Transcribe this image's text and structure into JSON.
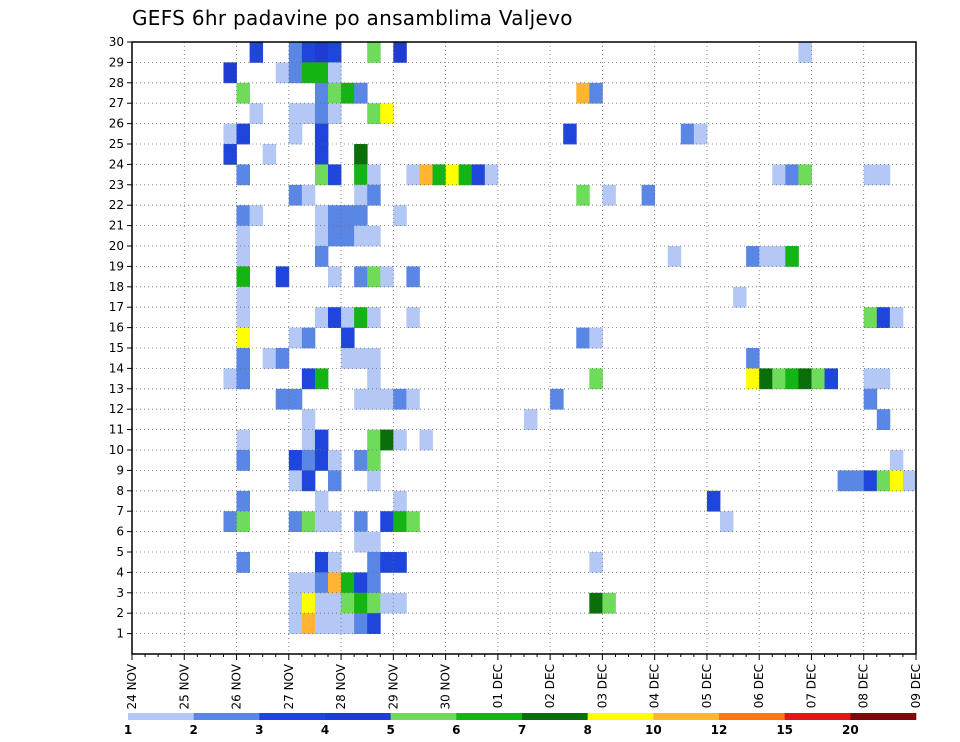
{
  "title": "GEFS 6hr padavine po ansamblima Valjevo",
  "chart_data": {
    "type": "heatmap",
    "title": "GEFS 6hr padavine po ansamblima Valjevo",
    "x_axis": {
      "labels": [
        "24 NOV",
        "25 NOV",
        "26 NOV",
        "27 NOV",
        "28 NOV",
        "29 NOV",
        "30 NOV",
        "01 DEC",
        "02 DEC",
        "03 DEC",
        "04 DEC",
        "05 DEC",
        "06 DEC",
        "07 DEC",
        "08 DEC",
        "09 DEC"
      ],
      "steps_per_day": 4,
      "total_steps": 60
    },
    "y_axis": {
      "labels": [
        "1",
        "2",
        "3",
        "4",
        "5",
        "6",
        "7",
        "8",
        "9",
        "10",
        "11",
        "12",
        "13",
        "14",
        "15",
        "16",
        "17",
        "18",
        "19",
        "20",
        "21",
        "22",
        "23",
        "24",
        "25",
        "26",
        "27",
        "28",
        "29",
        "30"
      ],
      "min": 0,
      "max": 30
    },
    "colorbar": {
      "labels": [
        "1",
        "2",
        "3",
        "4",
        "5",
        "6",
        "7",
        "8",
        "10",
        "12",
        "15",
        "20"
      ],
      "colors": [
        "#b4c8f5",
        "#5a87e6",
        "#1e46dc",
        "#1e3cd2",
        "#6edc5a",
        "#14b414",
        "#0a6e0a",
        "#ffff00",
        "#ffb432",
        "#ff7814",
        "#e61414",
        "#7d0a0a"
      ]
    },
    "cells": [
      {
        "m": 30,
        "t": [
          [
            9,
            2
          ],
          [
            12,
            1
          ],
          [
            13,
            2
          ],
          [
            14,
            3
          ],
          [
            15,
            2
          ],
          [
            18,
            4
          ],
          [
            20,
            3
          ],
          [
            51,
            0
          ]
        ]
      },
      {
        "m": 29,
        "t": [
          [
            7,
            3
          ],
          [
            11,
            0
          ],
          [
            12,
            1
          ],
          [
            13,
            5
          ],
          [
            14,
            5
          ],
          [
            15,
            0
          ]
        ]
      },
      {
        "m": 28,
        "t": [
          [
            8,
            4
          ],
          [
            14,
            1
          ],
          [
            15,
            4
          ],
          [
            16,
            5
          ],
          [
            17,
            1
          ],
          [
            34,
            8
          ],
          [
            35,
            1
          ]
        ]
      },
      {
        "m": 27,
        "t": [
          [
            9,
            0
          ],
          [
            12,
            0
          ],
          [
            13,
            0
          ],
          [
            14,
            1
          ],
          [
            15,
            0
          ],
          [
            18,
            4
          ],
          [
            19,
            7
          ]
        ]
      },
      {
        "m": 26,
        "t": [
          [
            7,
            0
          ],
          [
            8,
            2
          ],
          [
            12,
            0
          ],
          [
            14,
            2
          ],
          [
            33,
            2
          ],
          [
            42,
            1
          ],
          [
            43,
            0
          ]
        ]
      },
      {
        "m": 25,
        "t": [
          [
            7,
            2
          ],
          [
            10,
            0
          ],
          [
            14,
            2
          ],
          [
            17,
            6
          ]
        ]
      },
      {
        "m": 24,
        "t": [
          [
            8,
            1
          ],
          [
            14,
            4
          ],
          [
            15,
            2
          ],
          [
            17,
            5
          ],
          [
            18,
            0
          ],
          [
            21,
            0
          ],
          [
            22,
            8
          ],
          [
            23,
            5
          ],
          [
            24,
            7
          ],
          [
            25,
            5
          ],
          [
            26,
            2
          ],
          [
            27,
            0
          ],
          [
            49,
            0
          ],
          [
            50,
            1
          ],
          [
            51,
            4
          ],
          [
            56,
            0
          ],
          [
            57,
            0
          ]
        ]
      },
      {
        "m": 23,
        "t": [
          [
            12,
            1
          ],
          [
            13,
            0
          ],
          [
            17,
            0
          ],
          [
            18,
            1
          ],
          [
            34,
            4
          ],
          [
            36,
            0
          ],
          [
            39,
            1
          ]
        ]
      },
      {
        "m": 22,
        "t": [
          [
            8,
            1
          ],
          [
            9,
            0
          ],
          [
            14,
            0
          ],
          [
            15,
            1
          ],
          [
            16,
            1
          ],
          [
            17,
            1
          ],
          [
            20,
            0
          ]
        ]
      },
      {
        "m": 21,
        "t": [
          [
            8,
            0
          ],
          [
            14,
            0
          ],
          [
            15,
            1
          ],
          [
            16,
            1
          ],
          [
            17,
            0
          ],
          [
            18,
            0
          ]
        ]
      },
      {
        "m": 20,
        "t": [
          [
            8,
            0
          ],
          [
            14,
            1
          ],
          [
            41,
            0
          ],
          [
            47,
            1
          ],
          [
            48,
            0
          ],
          [
            49,
            0
          ],
          [
            50,
            5
          ]
        ]
      },
      {
        "m": 19,
        "t": [
          [
            8,
            5
          ],
          [
            11,
            2
          ],
          [
            15,
            0
          ],
          [
            17,
            1
          ],
          [
            18,
            4
          ],
          [
            19,
            0
          ],
          [
            21,
            1
          ]
        ]
      },
      {
        "m": 18,
        "t": [
          [
            8,
            0
          ],
          [
            46,
            0
          ]
        ]
      },
      {
        "m": 17,
        "t": [
          [
            8,
            0
          ],
          [
            14,
            0
          ],
          [
            15,
            2
          ],
          [
            16,
            0
          ],
          [
            17,
            5
          ],
          [
            18,
            0
          ],
          [
            21,
            0
          ],
          [
            56,
            4
          ],
          [
            57,
            2
          ],
          [
            58,
            0
          ]
        ]
      },
      {
        "m": 16,
        "t": [
          [
            8,
            7
          ],
          [
            12,
            0
          ],
          [
            13,
            1
          ],
          [
            16,
            2
          ],
          [
            34,
            1
          ],
          [
            35,
            0
          ]
        ]
      },
      {
        "m": 15,
        "t": [
          [
            8,
            1
          ],
          [
            10,
            0
          ],
          [
            11,
            1
          ],
          [
            16,
            0
          ],
          [
            17,
            0
          ],
          [
            18,
            0
          ],
          [
            47,
            1
          ]
        ]
      },
      {
        "m": 14,
        "t": [
          [
            7,
            0
          ],
          [
            8,
            1
          ],
          [
            13,
            2
          ],
          [
            14,
            5
          ],
          [
            18,
            0
          ],
          [
            35,
            4
          ],
          [
            47,
            7
          ],
          [
            48,
            6
          ],
          [
            49,
            4
          ],
          [
            50,
            5
          ],
          [
            51,
            6
          ],
          [
            52,
            4
          ],
          [
            53,
            2
          ],
          [
            56,
            0
          ],
          [
            57,
            0
          ]
        ]
      },
      {
        "m": 13,
        "t": [
          [
            11,
            1
          ],
          [
            12,
            1
          ],
          [
            17,
            0
          ],
          [
            18,
            0
          ],
          [
            19,
            0
          ],
          [
            20,
            1
          ],
          [
            21,
            0
          ],
          [
            32,
            1
          ],
          [
            56,
            1
          ]
        ]
      },
      {
        "m": 12,
        "t": [
          [
            13,
            0
          ],
          [
            30,
            0
          ],
          [
            57,
            1
          ]
        ]
      },
      {
        "m": 11,
        "t": [
          [
            8,
            0
          ],
          [
            13,
            0
          ],
          [
            14,
            2
          ],
          [
            18,
            4
          ],
          [
            19,
            6
          ],
          [
            20,
            0
          ],
          [
            22,
            0
          ]
        ]
      },
      {
        "m": 10,
        "t": [
          [
            8,
            1
          ],
          [
            12,
            2
          ],
          [
            13,
            1
          ],
          [
            14,
            2
          ],
          [
            15,
            0
          ],
          [
            17,
            1
          ],
          [
            18,
            4
          ],
          [
            58,
            0
          ]
        ]
      },
      {
        "m": 9,
        "t": [
          [
            12,
            0
          ],
          [
            13,
            2
          ],
          [
            15,
            1
          ],
          [
            18,
            0
          ],
          [
            54,
            1
          ],
          [
            55,
            1
          ],
          [
            56,
            2
          ],
          [
            57,
            4
          ],
          [
            58,
            7
          ],
          [
            59,
            0
          ]
        ]
      },
      {
        "m": 8,
        "t": [
          [
            8,
            1
          ],
          [
            14,
            0
          ],
          [
            20,
            0
          ],
          [
            44,
            2
          ]
        ]
      },
      {
        "m": 7,
        "t": [
          [
            7,
            1
          ],
          [
            8,
            4
          ],
          [
            12,
            1
          ],
          [
            13,
            4
          ],
          [
            14,
            0
          ],
          [
            15,
            0
          ],
          [
            17,
            1
          ],
          [
            19,
            2
          ],
          [
            20,
            5
          ],
          [
            21,
            4
          ],
          [
            45,
            0
          ]
        ]
      },
      {
        "m": 6,
        "t": [
          [
            17,
            0
          ],
          [
            18,
            0
          ]
        ]
      },
      {
        "m": 5,
        "t": [
          [
            8,
            1
          ],
          [
            14,
            2
          ],
          [
            15,
            0
          ],
          [
            18,
            1
          ],
          [
            19,
            2
          ],
          [
            20,
            2
          ],
          [
            35,
            0
          ]
        ]
      },
      {
        "m": 4,
        "t": [
          [
            12,
            0
          ],
          [
            13,
            0
          ],
          [
            14,
            1
          ],
          [
            15,
            8
          ],
          [
            16,
            5
          ],
          [
            17,
            2
          ],
          [
            18,
            1
          ]
        ]
      },
      {
        "m": 3,
        "t": [
          [
            12,
            0
          ],
          [
            13,
            7
          ],
          [
            14,
            0
          ],
          [
            15,
            0
          ],
          [
            16,
            4
          ],
          [
            17,
            5
          ],
          [
            18,
            4
          ],
          [
            19,
            0
          ],
          [
            20,
            0
          ],
          [
            35,
            6
          ],
          [
            36,
            4
          ]
        ]
      },
      {
        "m": 2,
        "t": [
          [
            12,
            0
          ],
          [
            13,
            8
          ],
          [
            14,
            0
          ],
          [
            15,
            0
          ],
          [
            16,
            0
          ],
          [
            17,
            1
          ],
          [
            18,
            2
          ]
        ]
      }
    ]
  }
}
